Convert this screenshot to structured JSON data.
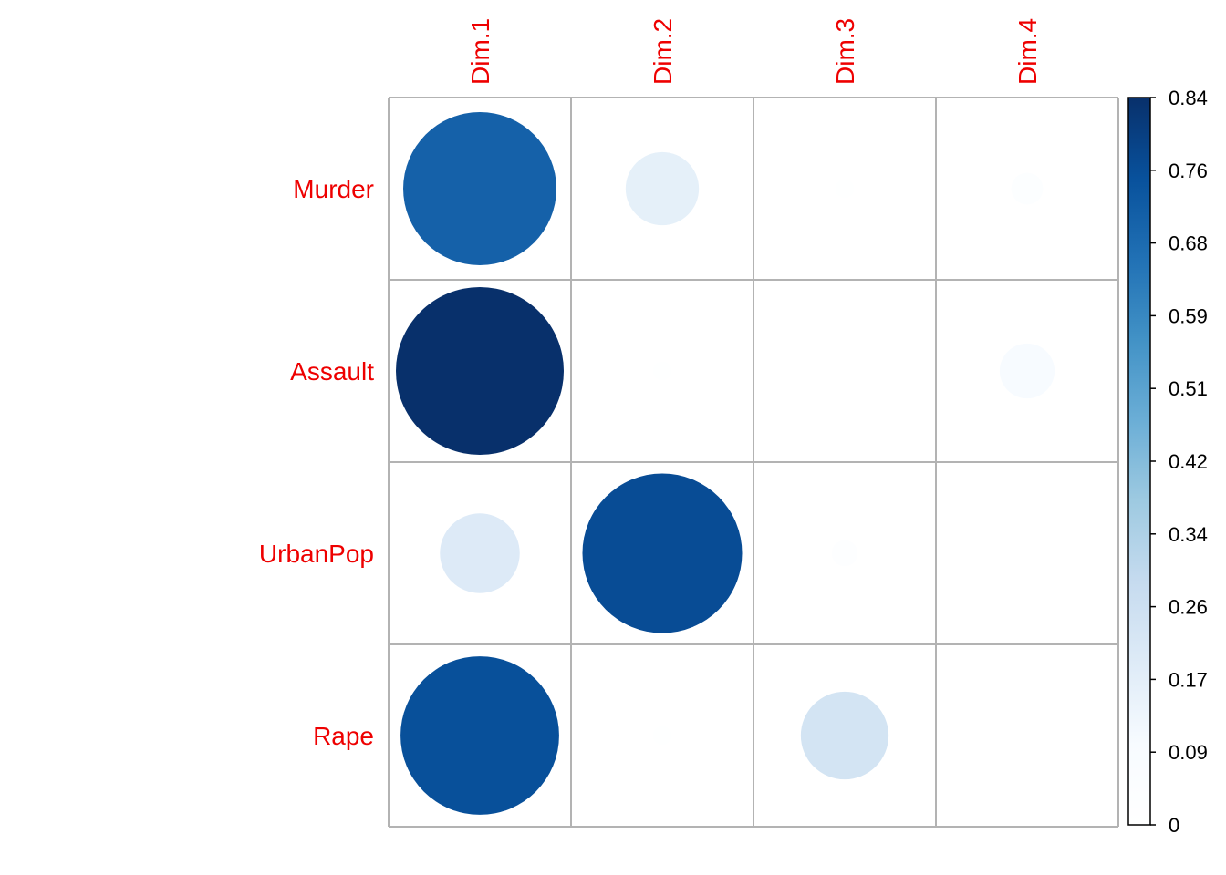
{
  "chart_data": {
    "type": "heatmap",
    "style": "circle",
    "rows": [
      "Murder",
      "Assault",
      "UrbanPop",
      "Rape"
    ],
    "columns": [
      "Dim.1",
      "Dim.2",
      "Dim.3",
      "Dim.4"
    ],
    "values": [
      [
        0.7,
        0.16,
        0.01,
        0.03
      ],
      [
        0.84,
        0.01,
        0.004,
        0.09
      ],
      [
        0.19,
        0.76,
        0.02,
        0.0
      ],
      [
        0.75,
        0.01,
        0.23,
        0.0
      ]
    ],
    "colorbar": {
      "min": 0,
      "max": 0.84,
      "ticks": [
        "0",
        "0.09",
        "0.17",
        "0.26",
        "0.34",
        "0.42",
        "0.51",
        "0.59",
        "0.68",
        "0.76",
        "0.84"
      ],
      "colors": [
        "#ffffff",
        "#f7fbff",
        "#deebf7",
        "#c6dbef",
        "#9ecae1",
        "#6baed6",
        "#4292c6",
        "#2171b5",
        "#08519c",
        "#08306b"
      ]
    },
    "label_color": "#ee0000",
    "grid_color": "#b3b3b3"
  }
}
